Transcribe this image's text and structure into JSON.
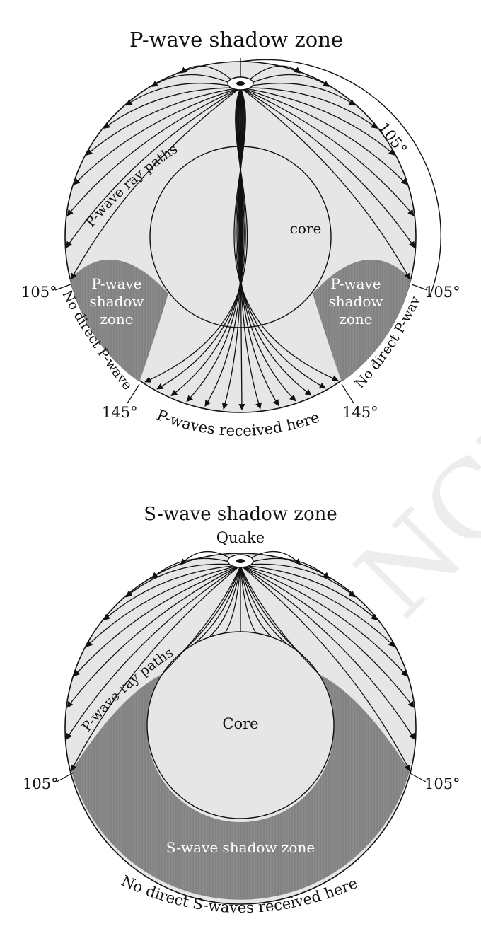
{
  "colors": {
    "earth_fill": "#e6e6e6",
    "shadow_fill": "#8a8a8a",
    "line": "#111111",
    "watermark": "#cfcfcf"
  },
  "p_diagram": {
    "title": "P-wave shadow zone",
    "core_label": "core",
    "ray_label": "P-wave ray paths",
    "shadow_left": [
      "P-wave",
      "shadow",
      "zone"
    ],
    "shadow_right": [
      "P-wave",
      "shadow",
      "zone"
    ],
    "angle_top": "105°",
    "angle_left": "105°",
    "angle_right": "105°",
    "angle_bottom_left": "145°",
    "angle_bottom_right": "145°",
    "no_direct_left": "No direct P-waves",
    "no_direct_right": "No direct P-waves",
    "received": "P-waves received here"
  },
  "s_diagram": {
    "title": "S-wave shadow zone",
    "quake_label": "Quake",
    "core_label": "Core",
    "ray_label": "P-wave ray paths",
    "shadow_label": "S-wave shadow zone",
    "angle_left": "105°",
    "angle_right": "105°",
    "no_direct": "No direct S-waves received here"
  },
  "watermark": "© NCERT"
}
